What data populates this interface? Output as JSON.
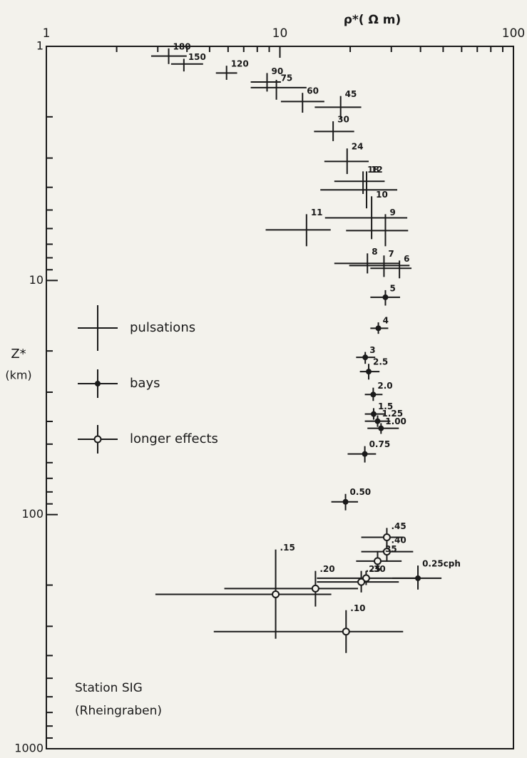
{
  "chart_data": {
    "type": "errorbar",
    "log_x": true,
    "log_y": true,
    "y_inverted": true,
    "x_label": "ρ*( Ω m)",
    "y_label": "Z*",
    "y_unit": "(km)",
    "annotation": [
      "Station SIG",
      "(Rheingraben)"
    ],
    "xlim": [
      1,
      100
    ],
    "ylim": [
      1,
      1000
    ],
    "xticks": [
      1,
      10,
      100
    ],
    "yticks": [
      1,
      10,
      100,
      1000
    ],
    "xminorticks": [
      2,
      3,
      4,
      5,
      6,
      7,
      8,
      9,
      20,
      30,
      40,
      50,
      60,
      70,
      80,
      90
    ],
    "yminorticks": [
      2,
      3,
      4,
      5,
      6,
      7,
      8,
      9,
      20,
      30,
      40,
      50,
      60,
      70,
      80,
      90,
      200,
      300,
      400,
      500,
      600,
      700,
      800,
      900
    ],
    "color": "#1a1a1a",
    "series": [
      {
        "name": "pulsations",
        "marker": "none",
        "points": [
          {
            "label": "180",
            "x": 3.34,
            "y": 1.1,
            "x_range": [
              2.81,
              3.99
            ],
            "y_range": [
              1.02,
              1.19
            ]
          },
          {
            "label": "150",
            "x": 3.88,
            "y": 1.19,
            "x_range": [
              3.42,
              4.69
            ],
            "y_range": [
              1.13,
              1.28
            ]
          },
          {
            "label": "120",
            "x": 5.91,
            "y": 1.3,
            "x_range": [
              5.32,
              6.56
            ],
            "y_range": [
              1.21,
              1.39
            ]
          },
          {
            "label": "90",
            "x": 8.81,
            "y": 1.42,
            "x_range": [
              7.5,
              10.1
            ],
            "y_range": [
              1.3,
              1.56
            ]
          },
          {
            "label": "75",
            "x": 9.66,
            "y": 1.5,
            "x_range": [
              7.5,
              13.0
            ],
            "y_range": [
              1.39,
              1.69
            ]
          },
          {
            "label": "60",
            "x": 12.5,
            "y": 1.72,
            "x_range": [
              10.1,
              15.5
            ],
            "y_range": [
              1.58,
              1.92
            ]
          },
          {
            "label": "45",
            "x": 18.2,
            "y": 1.82,
            "x_range": [
              14.1,
              22.3
            ],
            "y_range": [
              1.63,
              2.03
            ]
          },
          {
            "label": "30",
            "x": 16.9,
            "y": 2.31,
            "x_range": [
              14.0,
              20.8
            ],
            "y_range": [
              2.09,
              2.54
            ]
          },
          {
            "label": "24",
            "x": 19.4,
            "y": 3.1,
            "x_range": [
              15.5,
              24.0
            ],
            "y_range": [
              2.73,
              3.51
            ]
          },
          {
            "label": "18",
            "x": 22.7,
            "y": 3.77,
            "x_range": [
              17.1,
              28.1
            ],
            "y_range": [
              3.42,
              4.27
            ]
          },
          {
            "label": "12",
            "x": 23.5,
            "y": 4.1,
            "x_range": [
              14.9,
              31.8
            ],
            "y_range": [
              3.42,
              4.92
            ]
          },
          {
            "label": "10",
            "x": 24.7,
            "y": 5.4,
            "x_range": [
              15.6,
              35.1
            ],
            "y_range": [
              4.37,
              6.66
            ]
          },
          {
            "label": "11",
            "x": 13.0,
            "y": 6.08,
            "x_range": [
              8.69,
              16.5
            ],
            "y_range": [
              5.21,
              7.14
            ]
          },
          {
            "label": "9",
            "x": 28.3,
            "y": 6.12,
            "x_range": [
              19.2,
              35.4
            ],
            "y_range": [
              5.21,
              7.14
            ]
          },
          {
            "label": "8",
            "x": 23.7,
            "y": 8.45,
            "x_range": [
              17.1,
              32.5
            ],
            "y_range": [
              7.66,
              9.33
            ]
          },
          {
            "label": "7",
            "x": 27.9,
            "y": 8.63,
            "x_range": [
              19.8,
              35.9
            ],
            "y_range": [
              7.82,
              9.66
            ]
          },
          {
            "label": "6",
            "x": 32.5,
            "y": 8.87,
            "x_range": [
              24.4,
              36.6
            ],
            "y_range": [
              8.22,
              9.79
            ]
          }
        ]
      },
      {
        "name": "bays",
        "marker": "filled",
        "points": [
          {
            "label": "5",
            "x": 28.3,
            "y": 11.8,
            "x_range": [
              24.4,
              32.7
            ],
            "y_range": [
              11.0,
              12.8
            ]
          },
          {
            "label": "4",
            "x": 26.4,
            "y": 16.0,
            "x_range": [
              24.4,
              29.1
            ],
            "y_range": [
              15.1,
              16.9
            ]
          },
          {
            "label": "3",
            "x": 23.2,
            "y": 21.3,
            "x_range": [
              21.2,
              25.6
            ],
            "y_range": [
              20.2,
              22.7
            ]
          },
          {
            "label": "2.5",
            "x": 24.0,
            "y": 24.5,
            "x_range": [
              22.0,
              26.7
            ],
            "y_range": [
              22.7,
              26.5
            ]
          },
          {
            "label": "2.0",
            "x": 25.1,
            "y": 30.7,
            "x_range": [
              23.1,
              27.5
            ],
            "y_range": [
              28.7,
              32.7
            ]
          },
          {
            "label": "1.5",
            "x": 25.2,
            "y": 37.2,
            "x_range": [
              23.1,
              28.1
            ],
            "y_range": [
              35.1,
              39.3
            ]
          },
          {
            "label": "1.25",
            "x": 26.2,
            "y": 39.9,
            "x_range": [
              23.1,
              29.7
            ],
            "y_range": [
              37.7,
              42.2
            ]
          },
          {
            "label": "1.00",
            "x": 27.1,
            "y": 42.8,
            "x_range": [
              23.7,
              32.3
            ],
            "y_range": [
              40.7,
              45.2
            ]
          },
          {
            "label": "0.75",
            "x": 23.1,
            "y": 55.1,
            "x_range": [
              19.5,
              25.8
            ],
            "y_range": [
              51.0,
              59.9
            ]
          },
          {
            "label": "0.50",
            "x": 19.1,
            "y": 88.2,
            "x_range": [
              16.6,
              21.6
            ],
            "y_range": [
              81.6,
              95.9
            ]
          },
          {
            "label": "0.25cph",
            "x": 39.0,
            "y": 187,
            "x_range": [
              30.3,
              49.2
            ],
            "y_range": [
              165,
              209
            ]
          }
        ]
      },
      {
        "name": "longer effects",
        "marker": "open",
        "points": [
          {
            "label": ".45",
            "x": 28.7,
            "y": 125,
            "x_range": [
              22.3,
              33.7
            ],
            "y_range": [
              114,
              139
            ]
          },
          {
            "label": ".40",
            "x": 28.7,
            "y": 144,
            "x_range": [
              22.3,
              37.2
            ],
            "y_range": [
              131,
              159
            ]
          },
          {
            "label": ".35",
            "x": 26.2,
            "y": 158,
            "x_range": [
              21.2,
              33.2
            ],
            "y_range": [
              143,
              174
            ]
          },
          {
            "label": ".30",
            "x": 23.4,
            "y": 187,
            "x_range": [
              14.4,
              38.5
            ],
            "y_range": [
              174,
              200
            ]
          },
          {
            "label": ".25",
            "x": 22.3,
            "y": 194,
            "x_range": [
              14.4,
              32.3
            ],
            "y_range": [
              174,
              215
            ]
          },
          {
            "label": ".20",
            "x": 14.2,
            "y": 207,
            "x_range": [
              5.78,
              21.6
            ],
            "y_range": [
              174,
              247
            ]
          },
          {
            "label": ".15",
            "x": 9.59,
            "y": 219,
            "x_range": [
              2.93,
              16.6
            ],
            "y_range": [
              141,
              339
            ]
          },
          {
            "label": ".10",
            "x": 19.2,
            "y": 316,
            "x_range": [
              5.21,
              33.7
            ],
            "y_range": [
              256,
              390
            ]
          }
        ]
      }
    ]
  }
}
